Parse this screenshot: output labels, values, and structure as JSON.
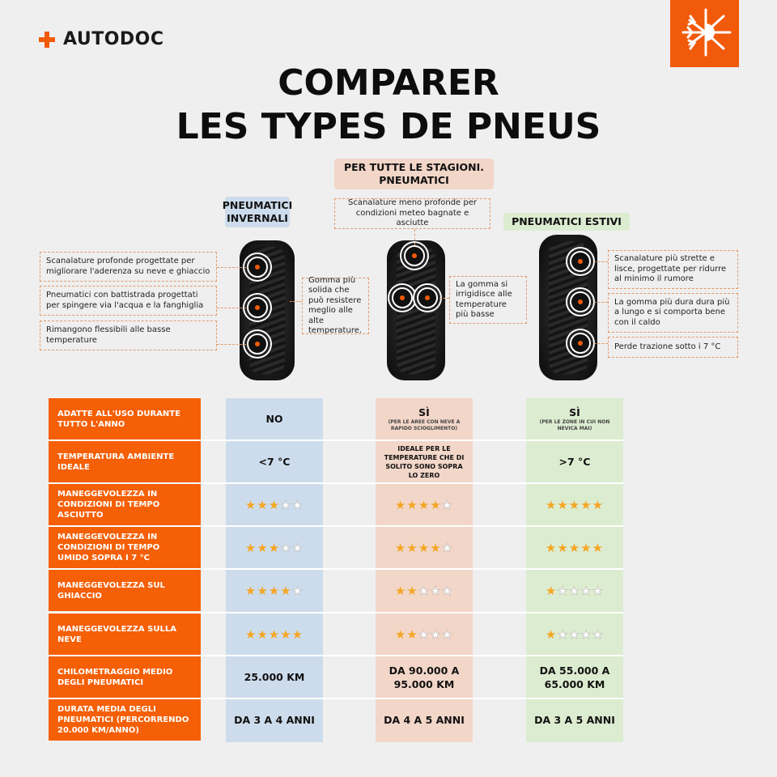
{
  "brand": "AUTODOC",
  "badge_icon": "snowflake-sun-icon",
  "title_line1": "COMPARER",
  "title_line2": "LES TYPES DE PNEUS",
  "colors": {
    "accent": "#f55f06",
    "winter": "#cddcec",
    "allseason": "#f2d6c8",
    "summer": "#dcecd0"
  },
  "types": {
    "winter": "PNEUMATICI INVERNALI",
    "allseason": "PER TUTTE LE STAGIONI. PNEUMATICI",
    "summer": "PNEUMATICI ESTIVI"
  },
  "notes": {
    "winter": [
      "Scanalature profonde progettate per migliorare l'aderenza su neve e ghiaccio",
      "Pneumatici con battistrada progettati per spingere via l'acqua e la fanghiglia",
      "Rimangono flessibili alle basse temperature",
      "Gomma più solida che può resistere meglio alle alte temperature."
    ],
    "allseason": [
      "Scanalature meno profonde per condizioni meteo bagnate e asciutte",
      "La gomma si irrigidisce alle temperature più basse"
    ],
    "summer": [
      "Scanalature più strette e lisce, progettate per ridurre al minimo il rumore",
      "La gomma più dura dura più a lungo e si comporta bene con il caldo",
      "Perde trazione sotto i 7 °C"
    ]
  },
  "rows": [
    {
      "label": "ADATTE ALL'USO DURANTE TUTTO L'ANNO",
      "winter": "NO",
      "allseason": "SÌ",
      "allseason_note": "(PER LE AREE CON NEVE A RAPIDO SCIOGLIMENTO)",
      "summer": "SÌ",
      "summer_note": "(PER LE ZONE IN CUI NON NEVICA MAI)"
    },
    {
      "label": "TEMPERATURA AMBIENTE IDEALE",
      "winter": "<7 °C",
      "allseason": "IDEALE PER LE TEMPERATURE CHE DI SOLITO SONO SOPRA LO ZERO",
      "summer": ">7 °C"
    },
    {
      "label": "MANEGGEVOLEZZA IN CONDIZIONI DI TEMPO ASCIUTTO",
      "stars": [
        3,
        4,
        5
      ]
    },
    {
      "label": "MANEGGEVOLEZZA IN CONDIZIONI DI TEMPO UMIDO SOPRA I 7 °C",
      "stars": [
        3,
        4,
        5
      ]
    },
    {
      "label": "MANEGGEVOLEZZA SUL GHIACCIO",
      "stars": [
        4,
        2,
        1
      ]
    },
    {
      "label": "MANEGGEVOLEZZA SULLA NEVE",
      "stars": [
        5,
        2,
        1
      ]
    },
    {
      "label": "CHILOMETRAGGIO MEDIO DEGLI PNEUMATICI",
      "winter": "25.000 KM",
      "allseason": "DA 90.000 A 95.000 KM",
      "summer": "DA 55.000 A 65.000 KM"
    },
    {
      "label": "DURATA MEDIA DEGLI PNEUMATICI (PERCORRENDO 20.000 KM/ANNO)",
      "winter": "DA 3 A 4 ANNI",
      "allseason": "DA 4 A 5 ANNI",
      "summer": "DA 3 A 5 ANNI"
    }
  ],
  "stars_max": 5
}
